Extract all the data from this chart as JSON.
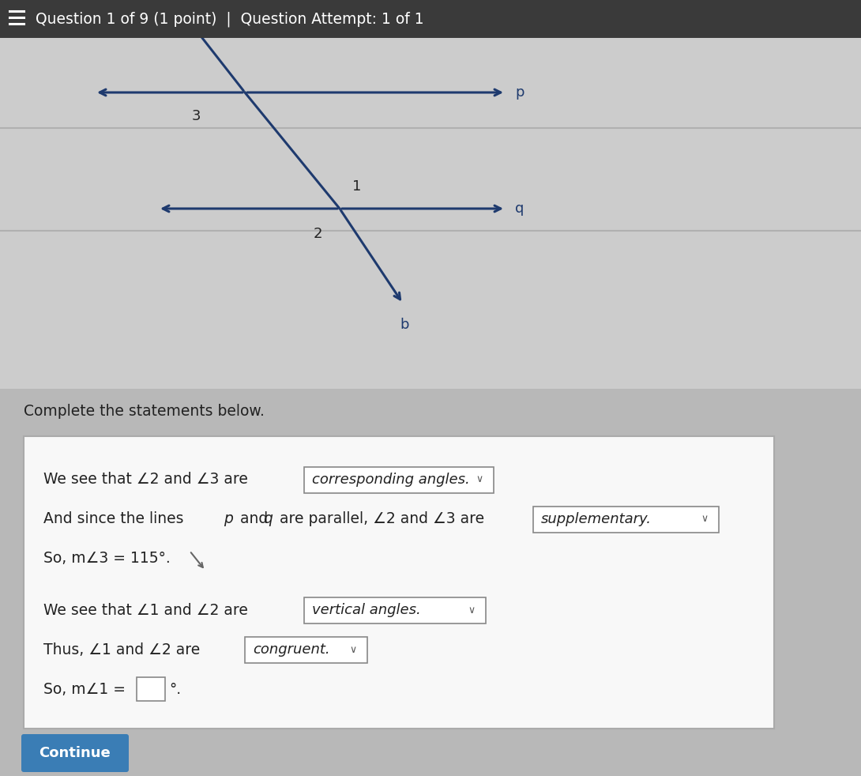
{
  "title": "Question 1 of 9 (1 point)  |  Question Attempt: 1 of 1",
  "header_bg": "#3a3a3a",
  "header_text_color": "#ffffff",
  "header_fontsize": 13,
  "bg_color": "#b8b8b8",
  "diagram_bg": "#d0d0d0",
  "line_color": "#1e3a6e",
  "text_color": "#1a1a1a",
  "box_bg": "#f8f8f8",
  "box_edge": "#aaaaaa",
  "dropdown_bg": "#ffffff",
  "dropdown_edge": "#888888",
  "continue_btn_color": "#3a7db5",
  "continue_text": "Continue",
  "complete_text": "Complete the statements below.",
  "angle_sym": "∠",
  "degree_sym": "°",
  "p_label": "p",
  "q_label": "q",
  "b_label": "b",
  "angle1": "1",
  "angle2": "2",
  "angle3": "3",
  "dd1_text": "corresponding angles.",
  "dd2_text": "supplementary.",
  "dd3_text": "vertical angles.",
  "dd4_text": "congruent.",
  "line1_pre": "We see that ∠2 and ∠3 are",
  "line2a": "And since the lines ",
  "line2b": "p",
  "line2c": " and ",
  "line2d": "q",
  "line2e": " are parallel, ∠2 and ∠3 are",
  "line3": "So, m∠3 = 115°.",
  "line4_pre": "We see that ∠1 and ∠2 are",
  "line5a": "Thus, ∠1 and ∠2 are",
  "line6": "So, m∠1 = "
}
